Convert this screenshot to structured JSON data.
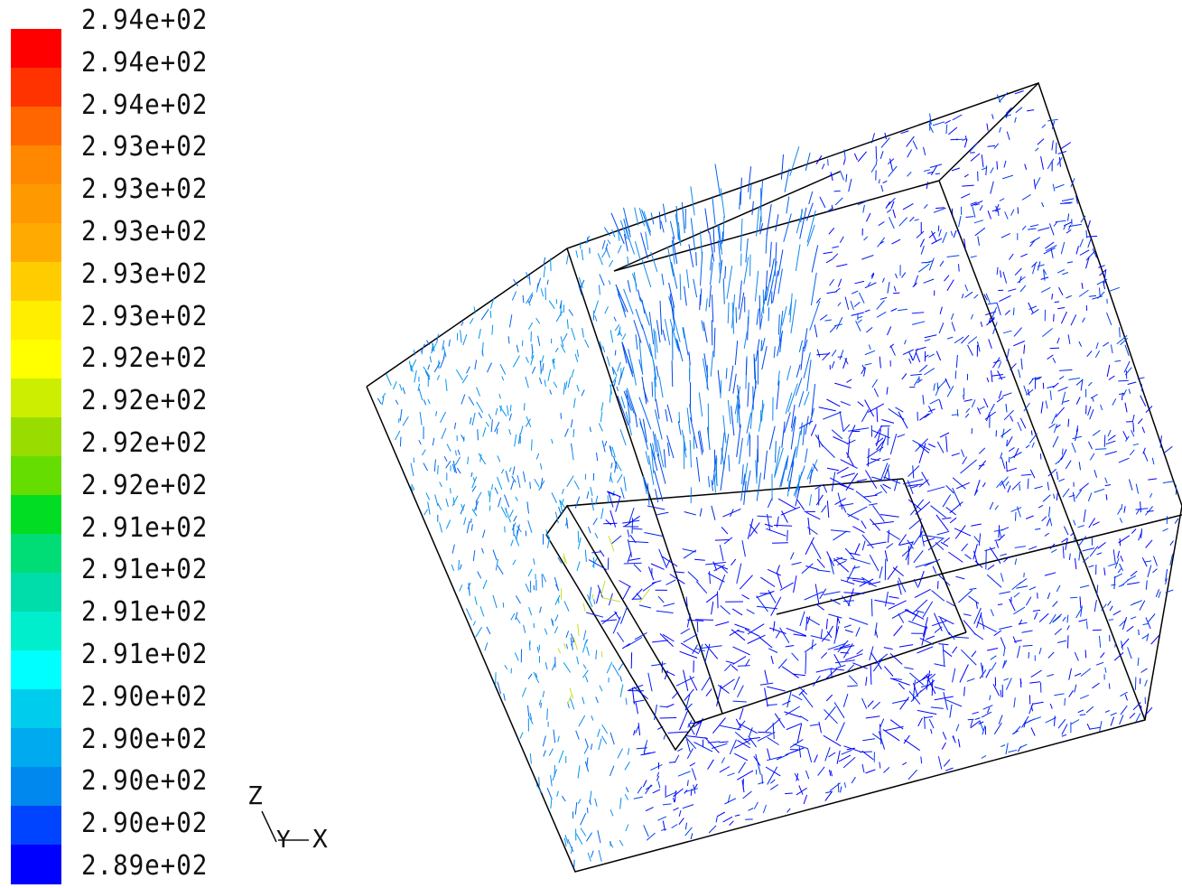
{
  "chart_data": {
    "type": "vector-field",
    "colorbar": {
      "ticks": [
        "2.94e+02",
        "2.94e+02",
        "2.94e+02",
        "2.93e+02",
        "2.93e+02",
        "2.93e+02",
        "2.93e+02",
        "2.93e+02",
        "2.92e+02",
        "2.92e+02",
        "2.92e+02",
        "2.92e+02",
        "2.91e+02",
        "2.91e+02",
        "2.91e+02",
        "2.91e+02",
        "2.90e+02",
        "2.90e+02",
        "2.90e+02",
        "2.90e+02",
        "2.89e+02"
      ],
      "colors": [
        "#ff0000",
        "#ff3300",
        "#ff6600",
        "#ff8800",
        "#ff9900",
        "#ffaa00",
        "#ffcc00",
        "#ffee00",
        "#ffff00",
        "#ccee00",
        "#99dd00",
        "#66dd00",
        "#00dd22",
        "#00dd77",
        "#00ddaa",
        "#00eecc",
        "#00ffff",
        "#00ccee",
        "#00aaee",
        "#0088ee",
        "#0044ff",
        "#0000ff"
      ],
      "min": 289,
      "max": 294
    },
    "axes_labels": {
      "z": "Z",
      "y": "Y",
      "x": "X"
    },
    "vector_color_range": [
      "#0000ff",
      "#ffff00"
    ]
  }
}
